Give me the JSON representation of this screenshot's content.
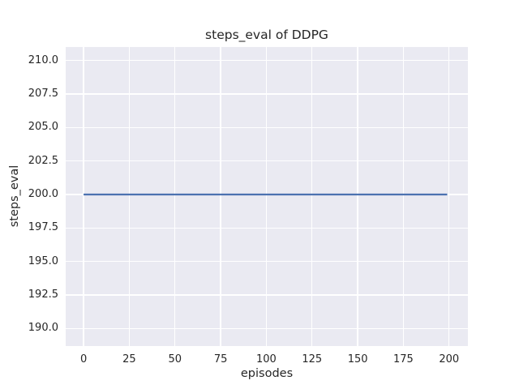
{
  "chart_data": {
    "type": "line",
    "title": "steps_eval of DDPG",
    "xlabel": "episodes",
    "ylabel": "steps_eval",
    "x_ticks": [
      0,
      25,
      50,
      75,
      100,
      125,
      150,
      175,
      200
    ],
    "y_ticks": [
      "190.0",
      "192.5",
      "195.0",
      "197.5",
      "200.0",
      "202.5",
      "205.0",
      "207.5",
      "210.0"
    ],
    "xlim": [
      -9.8,
      210.3
    ],
    "ylim": [
      188.7,
      211.0
    ],
    "grid": true,
    "legend_position": "none",
    "plot_bg_color": "#eaeaf2",
    "grid_color": "#ffffff",
    "text_color": "#262626",
    "series": [
      {
        "name": "DDPG",
        "color": "#4c72b0",
        "x": [
          0,
          199
        ],
        "values": [
          200,
          200
        ]
      }
    ]
  }
}
